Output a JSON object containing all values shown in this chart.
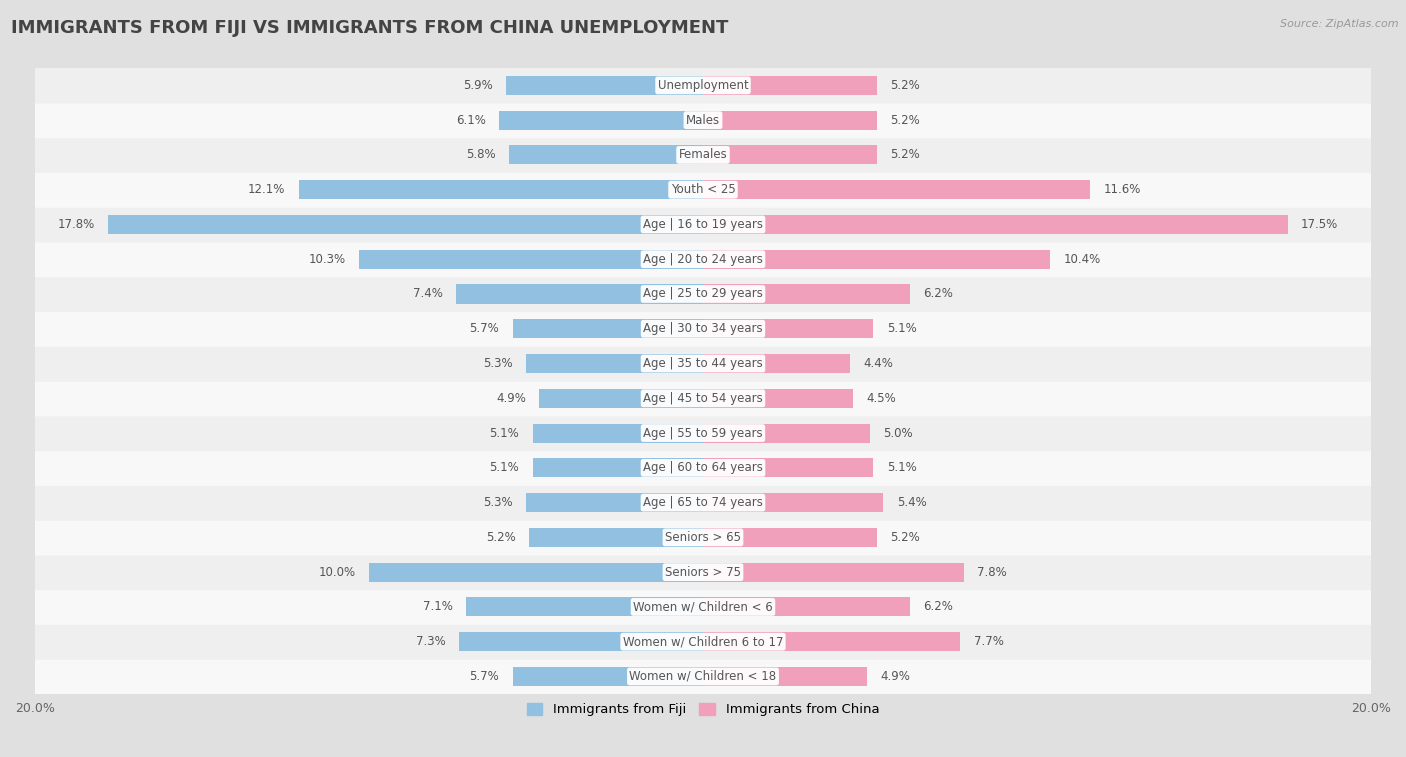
{
  "title": "IMMIGRANTS FROM FIJI VS IMMIGRANTS FROM CHINA UNEMPLOYMENT",
  "source": "Source: ZipAtlas.com",
  "categories": [
    "Unemployment",
    "Males",
    "Females",
    "Youth < 25",
    "Age | 16 to 19 years",
    "Age | 20 to 24 years",
    "Age | 25 to 29 years",
    "Age | 30 to 34 years",
    "Age | 35 to 44 years",
    "Age | 45 to 54 years",
    "Age | 55 to 59 years",
    "Age | 60 to 64 years",
    "Age | 65 to 74 years",
    "Seniors > 65",
    "Seniors > 75",
    "Women w/ Children < 6",
    "Women w/ Children 6 to 17",
    "Women w/ Children < 18"
  ],
  "fiji_values": [
    5.9,
    6.1,
    5.8,
    12.1,
    17.8,
    10.3,
    7.4,
    5.7,
    5.3,
    4.9,
    5.1,
    5.1,
    5.3,
    5.2,
    10.0,
    7.1,
    7.3,
    5.7
  ],
  "china_values": [
    5.2,
    5.2,
    5.2,
    11.6,
    17.5,
    10.4,
    6.2,
    5.1,
    4.4,
    4.5,
    5.0,
    5.1,
    5.4,
    5.2,
    7.8,
    6.2,
    7.7,
    4.9
  ],
  "fiji_color": "#92c0e0",
  "china_color": "#f0a0bb",
  "row_color_odd": "#f5f5f5",
  "row_color_even": "#e8e8e8",
  "background_color": "#e0e0e0",
  "axis_limit": 20.0,
  "fiji_label": "Immigrants from Fiji",
  "china_label": "Immigrants from China",
  "title_fontsize": 13,
  "label_fontsize": 8.5,
  "value_fontsize": 8.5
}
